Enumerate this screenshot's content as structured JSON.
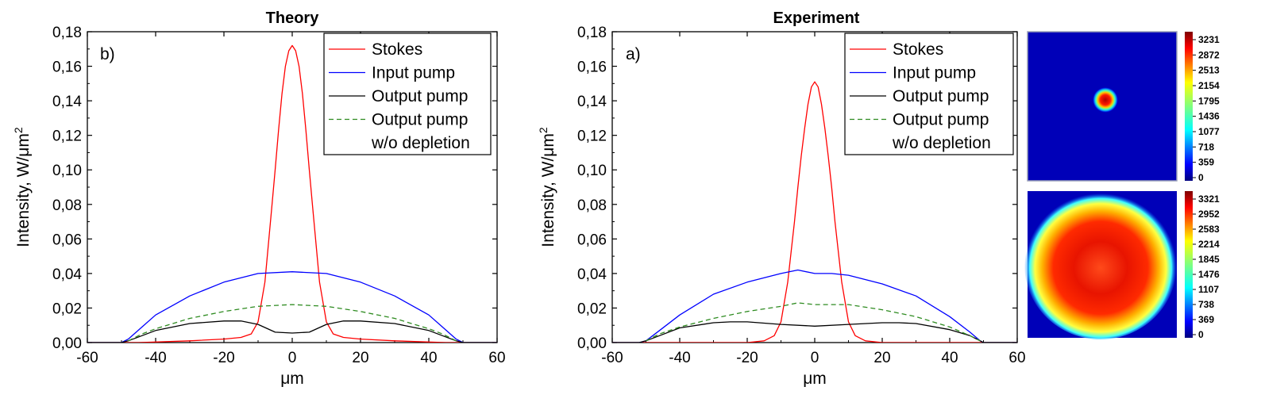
{
  "chart_data": [
    {
      "type": "line",
      "title": "Theory",
      "panel_label": "b)",
      "xlabel": "μm",
      "ylabel": "Intensity, W/μm²",
      "xlim": [
        -60,
        60
      ],
      "ylim": [
        0,
        0.18
      ],
      "x_ticks": [
        "-60",
        "-40",
        "-20",
        "0",
        "20",
        "40",
        "60"
      ],
      "y_ticks": [
        "0,00",
        "0,02",
        "0,04",
        "0,06",
        "0,08",
        "0,10",
        "0,12",
        "0,14",
        "0,16",
        "0,18"
      ],
      "grid": false,
      "legend_position": "top-right",
      "legend": [
        "Stokes",
        "Input pump",
        "Output pump",
        "Output pump",
        "w/o depletion"
      ],
      "series": [
        {
          "name": "Stokes",
          "color": "#ff0000",
          "style": "solid",
          "x": [
            -60,
            -45,
            -30,
            -20,
            -15,
            -12,
            -10,
            -8,
            -6,
            -5,
            -4,
            -3,
            -2,
            -1,
            0,
            1,
            2,
            3,
            4,
            5,
            6,
            8,
            10,
            12,
            15,
            20,
            30,
            45,
            60
          ],
          "y": [
            0,
            0,
            0.001,
            0.002,
            0.003,
            0.005,
            0.012,
            0.035,
            0.078,
            0.1,
            0.123,
            0.144,
            0.16,
            0.169,
            0.172,
            0.169,
            0.16,
            0.144,
            0.123,
            0.1,
            0.078,
            0.035,
            0.012,
            0.005,
            0.003,
            0.002,
            0.001,
            0,
            0
          ]
        },
        {
          "name": "Input pump",
          "color": "#0000ff",
          "style": "solid",
          "x": [
            -60,
            -50,
            -48,
            -44,
            -40,
            -30,
            -20,
            -10,
            0,
            10,
            20,
            30,
            40,
            44,
            48,
            50,
            60
          ],
          "y": [
            0,
            0,
            0.002,
            0.009,
            0.016,
            0.027,
            0.035,
            0.04,
            0.041,
            0.04,
            0.035,
            0.027,
            0.016,
            0.009,
            0.002,
            0,
            0
          ]
        },
        {
          "name": "Output pump",
          "color": "#000000",
          "style": "solid",
          "x": [
            -60,
            -50,
            -48,
            -44,
            -40,
            -30,
            -20,
            -15,
            -10,
            -5,
            0,
            5,
            10,
            15,
            20,
            30,
            40,
            44,
            48,
            50,
            60
          ],
          "y": [
            0,
            0,
            0.001,
            0.004,
            0.007,
            0.011,
            0.0125,
            0.0125,
            0.0105,
            0.006,
            0.0055,
            0.006,
            0.0105,
            0.0125,
            0.0125,
            0.011,
            0.007,
            0.004,
            0.001,
            0,
            0
          ]
        },
        {
          "name": "Output pump w/o depletion",
          "color": "#2e8b20",
          "style": "dashed",
          "x": [
            -48,
            -44,
            -40,
            -30,
            -20,
            -10,
            0,
            10,
            20,
            30,
            40,
            44,
            48
          ],
          "y": [
            0.001,
            0.005,
            0.008,
            0.014,
            0.018,
            0.021,
            0.022,
            0.021,
            0.018,
            0.014,
            0.008,
            0.005,
            0.001
          ]
        }
      ]
    },
    {
      "type": "line",
      "title": "Experiment",
      "panel_label": "a)",
      "xlabel": "μm",
      "ylabel": "Intensity, W/μm²",
      "xlim": [
        -60,
        60
      ],
      "ylim": [
        0,
        0.18
      ],
      "x_ticks": [
        "-60",
        "-40",
        "-20",
        "0",
        "20",
        "40",
        "60"
      ],
      "y_ticks": [
        "0,00",
        "0,02",
        "0,04",
        "0,06",
        "0,08",
        "0,10",
        "0,12",
        "0,14",
        "0,16",
        "0,18"
      ],
      "grid": false,
      "legend_position": "top-right",
      "legend": [
        "Stokes",
        "Input pump",
        "Output pump",
        "Output pump",
        "w/o depletion"
      ],
      "series": [
        {
          "name": "Stokes",
          "color": "#ff0000",
          "style": "solid",
          "x": [
            -60,
            -20,
            -15,
            -12,
            -10,
            -8,
            -6,
            -5,
            -4,
            -3,
            -2,
            -1,
            0,
            1,
            2,
            3,
            4,
            5,
            6,
            8,
            10,
            12,
            15,
            20,
            60
          ],
          "y": [
            0,
            0,
            0.001,
            0.004,
            0.012,
            0.035,
            0.07,
            0.09,
            0.108,
            0.124,
            0.138,
            0.148,
            0.151,
            0.148,
            0.138,
            0.124,
            0.108,
            0.09,
            0.07,
            0.035,
            0.012,
            0.004,
            0.001,
            0,
            0
          ]
        },
        {
          "name": "Input pump",
          "color": "#0000ff",
          "style": "solid",
          "x": [
            -60,
            -52,
            -50,
            -46,
            -40,
            -30,
            -20,
            -10,
            -5,
            0,
            5,
            10,
            20,
            30,
            40,
            46,
            49,
            50,
            60
          ],
          "y": [
            0,
            0,
            0.001,
            0.007,
            0.016,
            0.028,
            0.035,
            0.04,
            0.042,
            0.04,
            0.04,
            0.039,
            0.034,
            0.027,
            0.015,
            0.006,
            0.001,
            0,
            0
          ]
        },
        {
          "name": "Output pump",
          "color": "#000000",
          "style": "solid",
          "x": [
            -60,
            -52,
            -50,
            -46,
            -40,
            -30,
            -25,
            -20,
            -10,
            0,
            10,
            20,
            25,
            30,
            40,
            46,
            49,
            50,
            60
          ],
          "y": [
            0,
            0,
            0.001,
            0.004,
            0.0085,
            0.0115,
            0.012,
            0.012,
            0.0105,
            0.0095,
            0.0105,
            0.0115,
            0.0115,
            0.011,
            0.0075,
            0.004,
            0.001,
            0,
            0
          ]
        },
        {
          "name": "Output pump w/o depletion",
          "color": "#2e8b20",
          "style": "dashed",
          "x": [
            -50,
            -46,
            -40,
            -30,
            -20,
            -10,
            -5,
            0,
            5,
            10,
            20,
            30,
            40,
            46,
            49
          ],
          "y": [
            0.001,
            0.005,
            0.009,
            0.014,
            0.018,
            0.021,
            0.023,
            0.022,
            0.022,
            0.022,
            0.019,
            0.015,
            0.009,
            0.004,
            0.001
          ]
        }
      ]
    },
    {
      "type": "heatmap",
      "description": "small bright spot",
      "colorbar_ticks": [
        "3231",
        "2872",
        "2513",
        "2154",
        "1795",
        "1436",
        "1077",
        "718",
        "359",
        "0"
      ]
    },
    {
      "type": "heatmap",
      "description": "large ring-shaped spot",
      "colorbar_ticks": [
        "3321",
        "2952",
        "2583",
        "2214",
        "1845",
        "1476",
        "1107",
        "738",
        "369",
        "0"
      ]
    }
  ]
}
